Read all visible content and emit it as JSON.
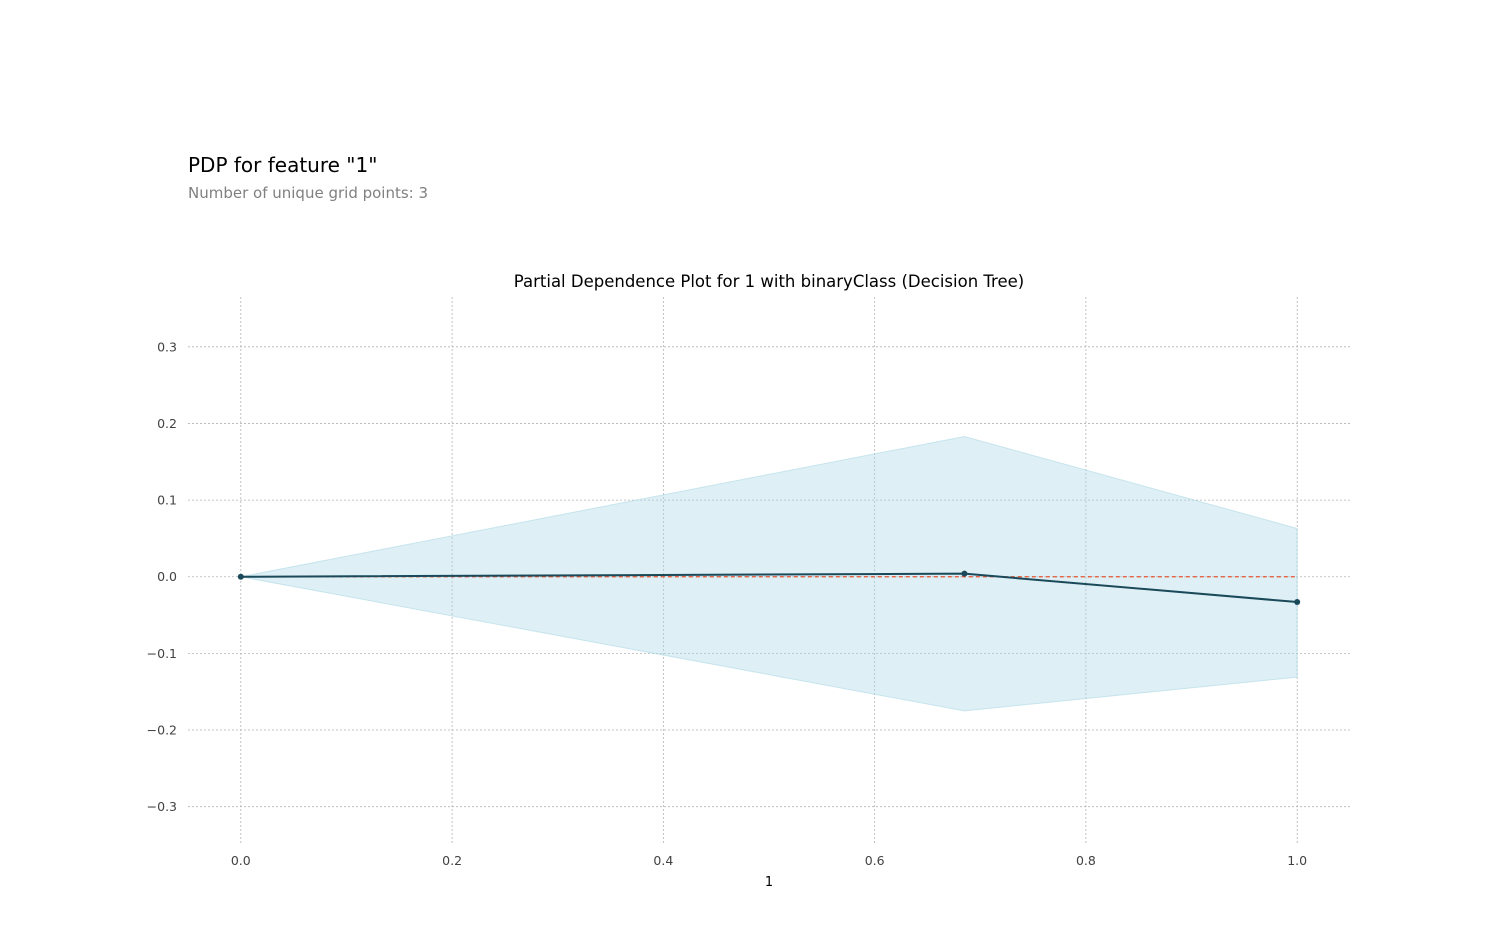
{
  "header": {
    "title": "PDP for feature \"1\"",
    "subtitle": "Number of unique grid points: 3"
  },
  "chart_data": {
    "type": "line",
    "title": "Partial Dependence Plot for 1 with binaryClass (Decision Tree)",
    "xlabel": "1",
    "ylabel": "",
    "xlim": [
      -0.05,
      1.05
    ],
    "ylim": [
      -0.35,
      0.365
    ],
    "x_ticks": [
      0.0,
      0.2,
      0.4,
      0.6,
      0.8,
      1.0
    ],
    "x_tick_labels": [
      "0.0",
      "0.2",
      "0.4",
      "0.6",
      "0.8",
      "1.0"
    ],
    "y_ticks": [
      0.3,
      0.2,
      0.1,
      0.0,
      -0.1,
      -0.2,
      -0.3
    ],
    "y_tick_labels": [
      "0.3",
      "0.2",
      "0.1",
      "0.0",
      "−0.1",
      "−0.2",
      "−0.3"
    ],
    "grid": true,
    "x": [
      0.0,
      0.685,
      1.0
    ],
    "series": [
      {
        "values": [
          0.0,
          0.004,
          -0.033
        ],
        "color": "#1a4a5a"
      }
    ],
    "band": {
      "upper": [
        0.0,
        0.183,
        0.063
      ],
      "lower": [
        0.0,
        -0.175,
        -0.131
      ],
      "color": "#add8e6"
    },
    "reference_line": {
      "y": 0.0,
      "style": "dashed",
      "color": "#e8532f"
    }
  }
}
